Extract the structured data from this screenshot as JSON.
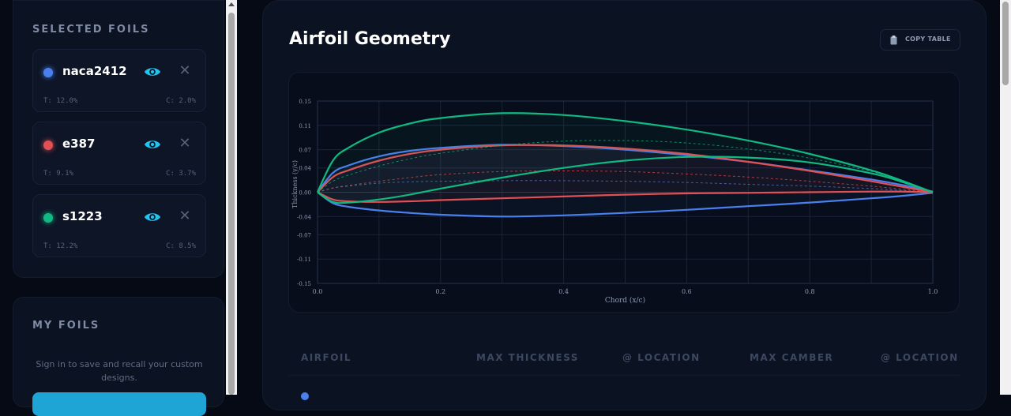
{
  "sidebar": {
    "selected_title": "SELECTED FOILS",
    "foils": [
      {
        "name": "naca2412",
        "thickness": "T: 12.0%",
        "camber": "C: 2.0%",
        "color": "#4a80ee"
      },
      {
        "name": "e387",
        "thickness": "T: 9.1%",
        "camber": "C: 3.7%",
        "color": "#e05054"
      },
      {
        "name": "s1223",
        "thickness": "T: 12.2%",
        "camber": "C: 8.5%",
        "color": "#10b981"
      }
    ],
    "my_title": "MY FOILS",
    "signin_text": "Sign in to save and recall your custom designs.",
    "eye_icon": "eye-icon",
    "close_icon": "close-icon"
  },
  "main": {
    "title": "Airfoil Geometry",
    "copy_label": "COPY TABLE",
    "copy_icon": "clipboard-icon",
    "table_headers": [
      "AIRFOIL",
      "MAX THICKNESS",
      "@ LOCATION",
      "MAX CAMBER",
      "@ LOCATION"
    ]
  },
  "chart_data": {
    "type": "line",
    "title": "",
    "xlabel": "Chord (x/c)",
    "ylabel": "Thickness (y/c)",
    "xlim": [
      0,
      1
    ],
    "ylim": [
      -0.15,
      0.15
    ],
    "x_ticks": [
      "0.0",
      "0.2",
      "0.4",
      "0.6",
      "0.8",
      "1.0"
    ],
    "y_ticks": [
      "0.15",
      "0.11",
      "0.07",
      "0.04",
      "0.00",
      "-0.04",
      "-0.07",
      "-0.11",
      "-0.15"
    ],
    "grid": true,
    "x": [
      0,
      0.025,
      0.05,
      0.1,
      0.15,
      0.2,
      0.3,
      0.4,
      0.5,
      0.6,
      0.7,
      0.8,
      0.9,
      0.95,
      1.0
    ],
    "series": [
      {
        "name": "naca2412",
        "color": "#4a80ee",
        "upper": [
          0,
          0.032,
          0.044,
          0.059,
          0.068,
          0.073,
          0.078,
          0.076,
          0.07,
          0.061,
          0.05,
          0.036,
          0.021,
          0.012,
          0.001
        ],
        "lower": [
          0,
          -0.018,
          -0.024,
          -0.03,
          -0.034,
          -0.037,
          -0.04,
          -0.038,
          -0.034,
          -0.029,
          -0.023,
          -0.017,
          -0.01,
          -0.006,
          -0.001
        ],
        "camber": [
          0,
          0.007,
          0.01,
          0.015,
          0.017,
          0.018,
          0.019,
          0.019,
          0.018,
          0.016,
          0.013,
          0.01,
          0.006,
          0.003,
          0
        ]
      },
      {
        "name": "e387",
        "color": "#e05054",
        "upper": [
          0,
          0.025,
          0.036,
          0.052,
          0.063,
          0.07,
          0.077,
          0.077,
          0.072,
          0.063,
          0.05,
          0.035,
          0.018,
          0.009,
          0
        ],
        "lower": [
          0,
          -0.012,
          -0.015,
          -0.016,
          -0.015,
          -0.013,
          -0.01,
          -0.007,
          -0.004,
          -0.002,
          -0.001,
          0.0,
          0.001,
          0.001,
          0
        ],
        "camber": [
          0,
          0.007,
          0.011,
          0.018,
          0.024,
          0.029,
          0.034,
          0.035,
          0.034,
          0.03,
          0.025,
          0.018,
          0.01,
          0.005,
          0
        ]
      },
      {
        "name": "s1223",
        "color": "#10b981",
        "upper": [
          0,
          0.052,
          0.073,
          0.098,
          0.113,
          0.122,
          0.13,
          0.127,
          0.117,
          0.103,
          0.085,
          0.063,
          0.036,
          0.019,
          0
        ],
        "lower": [
          0,
          -0.016,
          -0.017,
          -0.012,
          -0.004,
          0.006,
          0.024,
          0.04,
          0.052,
          0.058,
          0.057,
          0.049,
          0.031,
          0.017,
          0
        ],
        "camber": [
          0,
          0.018,
          0.028,
          0.043,
          0.055,
          0.064,
          0.077,
          0.084,
          0.085,
          0.081,
          0.071,
          0.056,
          0.034,
          0.018,
          0
        ]
      }
    ]
  }
}
